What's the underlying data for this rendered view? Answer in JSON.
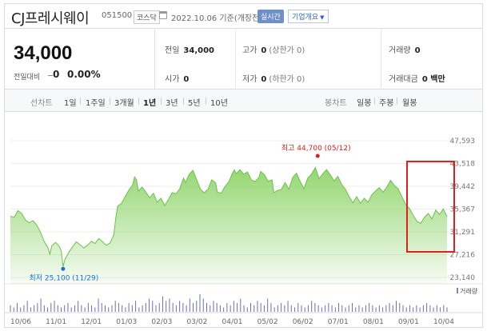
{
  "header": {
    "company": "CJ프레시웨이",
    "code": "051500",
    "market": "코스닥",
    "date": "2022.10.06  기준(개장전)",
    "realtime": "실시간",
    "info_button": "기업개요"
  },
  "quote": {
    "price": "34,000",
    "change_label": "전일대비",
    "change_value": "0",
    "change_pct": "0.00%",
    "prev_close_label": "전일",
    "prev_close": "34,000",
    "open_label": "시가",
    "open": "0",
    "high_label": "고가",
    "high": "0",
    "high_note": "(상한가 0)",
    "low_label": "저가",
    "low": "0",
    "low_note": "(하한가 0)",
    "volume_label": "거래량",
    "volume": "0",
    "amount_label": "거래대금",
    "amount": "0 백만"
  },
  "tabs": {
    "line_label": "선차트",
    "periods": [
      "1일",
      "1주일",
      "3개월",
      "1년",
      "3년",
      "5년",
      "10년"
    ],
    "active": "1년",
    "candle_label": "봉차트",
    "candles": [
      "일봉",
      "주봉",
      "월봉"
    ]
  },
  "chart_data": {
    "type": "area",
    "y_ticks": [
      "47,593",
      "43,518",
      "39,442",
      "35,367",
      "31,291",
      "27,216",
      "23,140"
    ],
    "x_ticks": [
      "10/06",
      "11/01",
      "12/01",
      "01/03",
      "02/03",
      "03/02",
      "04/01",
      "05/02",
      "06/02",
      "07/01",
      "08/01",
      "09/01",
      "10/04"
    ],
    "ylim": [
      23140,
      47593
    ],
    "high_annotation": "최고 44,700 (05/12)",
    "low_annotation": "최저 25,100 (11/29)",
    "volume_label": "거래량",
    "area_color": "#8fd46a",
    "line_color": "#6cc24a",
    "highlight_color": "#e0201d",
    "series": [
      {
        "x": 0,
        "y": 34100
      },
      {
        "x": 2,
        "y": 33900
      },
      {
        "x": 4,
        "y": 35100
      },
      {
        "x": 6,
        "y": 34600
      },
      {
        "x": 8,
        "y": 33400
      },
      {
        "x": 10,
        "y": 32900
      },
      {
        "x": 12,
        "y": 33300
      },
      {
        "x": 14,
        "y": 32500
      },
      {
        "x": 16,
        "y": 31200
      },
      {
        "x": 18,
        "y": 29500
      },
      {
        "x": 20,
        "y": 28400
      },
      {
        "x": 21,
        "y": 27300
      },
      {
        "x": 22,
        "y": 28800
      },
      {
        "x": 24,
        "y": 29400
      },
      {
        "x": 26,
        "y": 28700
      },
      {
        "x": 27,
        "y": 27900
      },
      {
        "x": 28,
        "y": 25100
      },
      {
        "x": 29,
        "y": 26400
      },
      {
        "x": 31,
        "y": 27600
      },
      {
        "x": 33,
        "y": 28600
      },
      {
        "x": 35,
        "y": 29500
      },
      {
        "x": 37,
        "y": 29000
      },
      {
        "x": 39,
        "y": 28400
      },
      {
        "x": 41,
        "y": 28900
      },
      {
        "x": 43,
        "y": 29600
      },
      {
        "x": 45,
        "y": 29200
      },
      {
        "x": 47,
        "y": 30100
      },
      {
        "x": 49,
        "y": 29500
      },
      {
        "x": 51,
        "y": 28900
      },
      {
        "x": 53,
        "y": 29300
      },
      {
        "x": 55,
        "y": 30800
      },
      {
        "x": 56,
        "y": 33800
      },
      {
        "x": 57,
        "y": 35900
      },
      {
        "x": 59,
        "y": 36400
      },
      {
        "x": 61,
        "y": 37600
      },
      {
        "x": 63,
        "y": 38800
      },
      {
        "x": 65,
        "y": 39700
      },
      {
        "x": 66,
        "y": 41100
      },
      {
        "x": 67,
        "y": 40600
      },
      {
        "x": 68,
        "y": 38600
      },
      {
        "x": 70,
        "y": 39300
      },
      {
        "x": 72,
        "y": 38400
      },
      {
        "x": 74,
        "y": 37400
      },
      {
        "x": 76,
        "y": 38200
      },
      {
        "x": 78,
        "y": 36600
      },
      {
        "x": 80,
        "y": 37300
      },
      {
        "x": 82,
        "y": 36000
      },
      {
        "x": 84,
        "y": 37100
      },
      {
        "x": 86,
        "y": 38300
      },
      {
        "x": 88,
        "y": 38100
      },
      {
        "x": 90,
        "y": 39000
      },
      {
        "x": 92,
        "y": 40900
      },
      {
        "x": 93,
        "y": 40100
      },
      {
        "x": 95,
        "y": 41600
      },
      {
        "x": 97,
        "y": 42300
      },
      {
        "x": 99,
        "y": 40600
      },
      {
        "x": 101,
        "y": 38900
      },
      {
        "x": 103,
        "y": 38300
      },
      {
        "x": 105,
        "y": 38900
      },
      {
        "x": 107,
        "y": 40600
      },
      {
        "x": 109,
        "y": 40100
      },
      {
        "x": 110,
        "y": 38400
      },
      {
        "x": 112,
        "y": 38200
      },
      {
        "x": 114,
        "y": 39400
      },
      {
        "x": 116,
        "y": 40200
      },
      {
        "x": 118,
        "y": 41800
      },
      {
        "x": 119,
        "y": 42400
      },
      {
        "x": 120,
        "y": 41700
      },
      {
        "x": 122,
        "y": 42400
      },
      {
        "x": 124,
        "y": 41600
      },
      {
        "x": 126,
        "y": 42000
      },
      {
        "x": 128,
        "y": 40600
      },
      {
        "x": 130,
        "y": 40300
      },
      {
        "x": 132,
        "y": 41000
      },
      {
        "x": 133,
        "y": 42100
      },
      {
        "x": 135,
        "y": 41500
      },
      {
        "x": 137,
        "y": 40300
      },
      {
        "x": 139,
        "y": 40600
      },
      {
        "x": 140,
        "y": 38300
      },
      {
        "x": 142,
        "y": 38700
      },
      {
        "x": 144,
        "y": 38900
      },
      {
        "x": 146,
        "y": 40100
      },
      {
        "x": 148,
        "y": 38900
      },
      {
        "x": 150,
        "y": 41000
      },
      {
        "x": 152,
        "y": 41800
      },
      {
        "x": 154,
        "y": 40300
      },
      {
        "x": 156,
        "y": 39000
      },
      {
        "x": 158,
        "y": 40900
      },
      {
        "x": 160,
        "y": 41600
      },
      {
        "x": 162,
        "y": 42800
      },
      {
        "x": 164,
        "y": 40800
      },
      {
        "x": 166,
        "y": 41700
      },
      {
        "x": 168,
        "y": 42400
      },
      {
        "x": 170,
        "y": 41500
      },
      {
        "x": 172,
        "y": 40400
      },
      {
        "x": 174,
        "y": 41200
      },
      {
        "x": 176,
        "y": 39800
      },
      {
        "x": 178,
        "y": 38900
      },
      {
        "x": 180,
        "y": 37600
      },
      {
        "x": 182,
        "y": 36500
      },
      {
        "x": 184,
        "y": 37600
      },
      {
        "x": 186,
        "y": 36400
      },
      {
        "x": 188,
        "y": 37300
      },
      {
        "x": 190,
        "y": 36600
      },
      {
        "x": 192,
        "y": 37900
      },
      {
        "x": 194,
        "y": 38600
      },
      {
        "x": 196,
        "y": 39200
      },
      {
        "x": 198,
        "y": 38400
      },
      {
        "x": 200,
        "y": 39300
      },
      {
        "x": 202,
        "y": 40500
      },
      {
        "x": 204,
        "y": 39600
      },
      {
        "x": 206,
        "y": 39000
      },
      {
        "x": 208,
        "y": 37600
      },
      {
        "x": 210,
        "y": 36200
      },
      {
        "x": 212,
        "y": 35500
      },
      {
        "x": 214,
        "y": 34300
      },
      {
        "x": 216,
        "y": 33200
      },
      {
        "x": 218,
        "y": 32800
      },
      {
        "x": 220,
        "y": 33900
      },
      {
        "x": 222,
        "y": 34600
      },
      {
        "x": 224,
        "y": 33600
      },
      {
        "x": 226,
        "y": 35200
      },
      {
        "x": 228,
        "y": 34400
      },
      {
        "x": 230,
        "y": 35400
      },
      {
        "x": 232,
        "y": 34000
      }
    ],
    "volume": [
      3,
      2,
      4,
      2,
      3,
      5,
      2,
      3,
      4,
      6,
      3,
      2,
      4,
      5,
      3,
      2,
      3,
      4,
      2,
      3,
      5,
      3,
      2,
      4,
      3,
      2,
      6,
      4,
      3,
      2,
      3,
      5,
      4,
      3,
      2,
      4,
      3,
      5,
      2,
      3,
      4,
      6,
      5,
      3,
      4,
      7,
      5,
      6,
      4,
      3,
      5,
      4,
      3,
      6,
      4,
      5,
      8,
      6,
      4,
      3,
      5,
      4,
      3,
      2,
      4,
      3,
      5,
      4,
      6,
      3,
      2,
      4,
      3,
      5,
      4,
      3,
      6,
      4,
      2,
      3,
      4,
      3,
      5,
      3,
      2,
      4,
      3,
      2,
      3,
      5,
      4,
      3,
      2,
      3,
      4,
      3,
      2,
      4,
      3,
      2,
      3,
      4,
      2,
      3,
      2,
      3,
      4,
      3,
      2,
      3,
      2,
      3,
      4,
      3,
      5,
      4,
      3,
      2,
      3,
      2,
      3,
      2,
      3,
      4,
      3,
      2,
      3,
      2,
      3,
      2
    ]
  }
}
